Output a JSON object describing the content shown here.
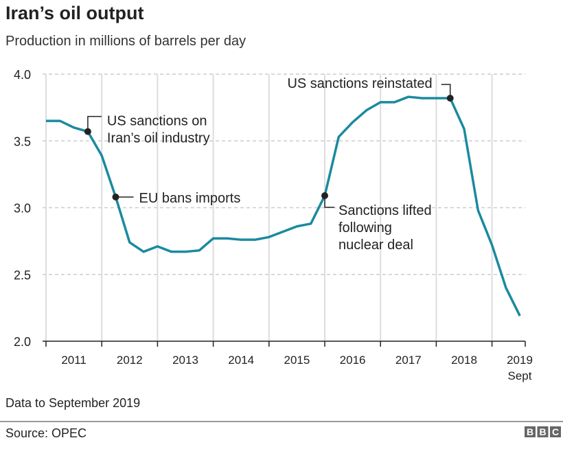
{
  "chart_data": {
    "type": "line",
    "title": "Iran’s oil output",
    "subtitle": "Production in millions of barrels per day",
    "xlabel": "",
    "ylabel": "",
    "ylim": [
      2.0,
      4.0
    ],
    "yticks": [
      "4.0",
      "3.5",
      "3.0",
      "2.5",
      "2.0"
    ],
    "ytick_values": [
      4.0,
      3.5,
      3.0,
      2.5,
      2.0
    ],
    "xlim": [
      "2011 Q1",
      "2019 Q4"
    ],
    "xtick_labels": [
      "2011",
      "2012",
      "2013",
      "2014",
      "2015",
      "2016",
      "2017",
      "2018",
      "2019"
    ],
    "xtick_last_sublabel": "Sept",
    "grid": {
      "horizontal": "dashed",
      "vertical": "solid"
    },
    "line_color": "#1a8aa0",
    "series": [
      {
        "x": [
          "2011 Q1",
          "2011 Q2",
          "2011 Q3",
          "2011 Q4",
          "2012 Q1",
          "2012 Q2",
          "2012 Q3",
          "2012 Q4",
          "2013 Q1",
          "2013 Q2",
          "2013 Q3",
          "2013 Q4",
          "2014 Q1",
          "2014 Q2",
          "2014 Q3",
          "2014 Q4",
          "2015 Q1",
          "2015 Q2",
          "2015 Q3",
          "2015 Q4",
          "2016 Q1",
          "2016 Q2",
          "2016 Q3",
          "2016 Q4",
          "2017 Q1",
          "2017 Q2",
          "2017 Q3",
          "2017 Q4",
          "2018 Q1",
          "2018 Q2",
          "2018 Q3",
          "2018 Q4",
          "2019 Q1",
          "2019 Q2",
          "2019 Q3"
        ],
        "values": [
          3.65,
          3.65,
          3.6,
          3.57,
          3.39,
          3.08,
          2.74,
          2.67,
          2.71,
          2.67,
          2.67,
          2.68,
          2.77,
          2.77,
          2.76,
          2.76,
          2.78,
          2.82,
          2.86,
          2.88,
          3.09,
          3.53,
          3.64,
          3.73,
          3.79,
          3.79,
          3.83,
          3.82,
          3.82,
          3.82,
          3.59,
          2.98,
          2.72,
          2.4,
          2.19
        ]
      }
    ],
    "annotations": [
      {
        "x": "2011 Q4",
        "lines": [
          "US sanctions on",
          "Iran’s oil industry"
        ]
      },
      {
        "x": "2012 Q2",
        "lines": [
          "EU bans imports"
        ]
      },
      {
        "x": "2016 Q1",
        "lines": [
          "Sanctions lifted",
          "following",
          "nuclear deal"
        ]
      },
      {
        "x": "2018 Q2",
        "lines": [
          "US sanctions reinstated"
        ]
      }
    ]
  },
  "footer": {
    "note": "Data to September 2019",
    "source": "Source: OPEC",
    "logo": "BBC"
  }
}
